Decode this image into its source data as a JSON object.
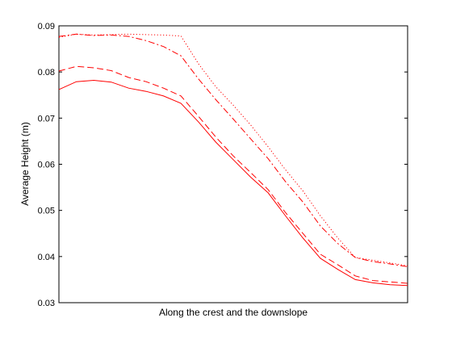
{
  "chart_data": {
    "type": "line",
    "title": "",
    "xlabel": "Along the crest and the downslope",
    "ylabel": "Average Height (m)",
    "xlim": [
      0,
      1
    ],
    "ylim": [
      0.03,
      0.09
    ],
    "yticks": [
      "0.03",
      "0.04",
      "0.05",
      "0.06",
      "0.07",
      "0.08",
      "0.09"
    ],
    "xticks": [],
    "grid": false,
    "legend": "none",
    "x": [
      0.0,
      0.05,
      0.1,
      0.15,
      0.2,
      0.25,
      0.3,
      0.35,
      0.4,
      0.45,
      0.5,
      0.55,
      0.6,
      0.65,
      0.7,
      0.75,
      0.8,
      0.85,
      0.9,
      0.95,
      1.0
    ],
    "series": [
      {
        "style": "solid",
        "color": "#ff0000",
        "values": [
          0.0762,
          0.0779,
          0.0782,
          0.0778,
          0.0765,
          0.0758,
          0.0748,
          0.0732,
          0.0692,
          0.0648,
          0.061,
          0.0572,
          0.0538,
          0.0488,
          0.044,
          0.0396,
          0.0372,
          0.035,
          0.0343,
          0.0339,
          0.0337
        ]
      },
      {
        "style": "dashed",
        "color": "#ff0000",
        "values": [
          0.0802,
          0.0812,
          0.0809,
          0.0803,
          0.0788,
          0.0779,
          0.0765,
          0.0748,
          0.0704,
          0.0659,
          0.0618,
          0.0582,
          0.0545,
          0.0495,
          0.045,
          0.0405,
          0.0382,
          0.0358,
          0.0348,
          0.0345,
          0.0342
        ]
      },
      {
        "style": "dashdot",
        "color": "#ff0000",
        "values": [
          0.0877,
          0.0882,
          0.0879,
          0.088,
          0.0877,
          0.0868,
          0.0855,
          0.0835,
          0.0785,
          0.074,
          0.0698,
          0.0655,
          0.0612,
          0.0562,
          0.0518,
          0.0466,
          0.0428,
          0.0398,
          0.0389,
          0.0384,
          0.0378
        ]
      },
      {
        "style": "dotted",
        "color": "#ff0000",
        "values": [
          0.0875,
          0.0882,
          0.088,
          0.0881,
          0.0882,
          0.0881,
          0.088,
          0.0878,
          0.0818,
          0.0768,
          0.0728,
          0.0685,
          0.0638,
          0.0588,
          0.0542,
          0.0488,
          0.044,
          0.0398,
          0.0392,
          0.0386,
          0.038
        ]
      }
    ]
  }
}
